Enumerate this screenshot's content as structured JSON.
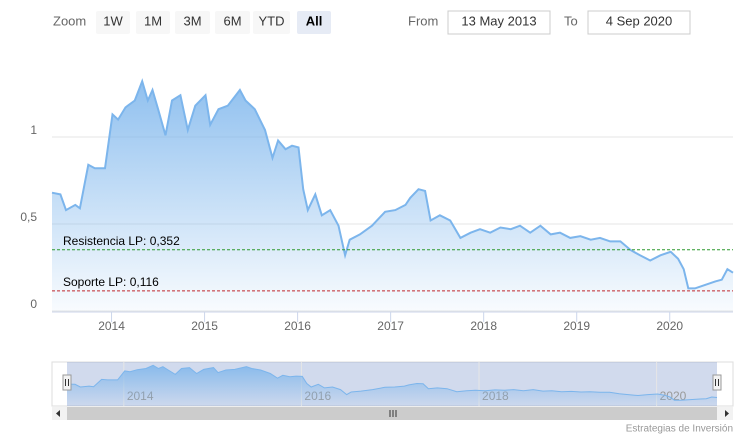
{
  "chart_data": {
    "type": "area",
    "range_selector": {
      "zoom_label": "Zoom",
      "buttons": [
        "1W",
        "1M",
        "3M",
        "6M",
        "YTD",
        "All"
      ],
      "selected": "All",
      "from_label": "From",
      "from_value": "13 May 2013",
      "to_label": "To",
      "to_value": "4 Sep 2020"
    },
    "color": "#7cb5ec",
    "x": [
      2013.36,
      2013.45,
      2013.51,
      2013.61,
      2013.66,
      2013.75,
      2013.82,
      2013.93,
      2014.01,
      2014.07,
      2014.15,
      2014.25,
      2014.33,
      2014.39,
      2014.44,
      2014.5,
      2014.58,
      2014.65,
      2014.74,
      2014.82,
      2014.9,
      2015.01,
      2015.06,
      2015.15,
      2015.25,
      2015.38,
      2015.44,
      2015.54,
      2015.65,
      2015.73,
      2015.79,
      2015.87,
      2015.94,
      2016.01,
      2016.06,
      2016.11,
      2016.19,
      2016.26,
      2016.35,
      2016.44,
      2016.51,
      2016.56,
      2016.67,
      2016.8,
      2016.94,
      2017.05,
      2017.16,
      2017.21,
      2017.3,
      2017.37,
      2017.43,
      2017.53,
      2017.64,
      2017.75,
      2017.86,
      2017.96,
      2018.07,
      2018.18,
      2018.29,
      2018.39,
      2018.5,
      2018.61,
      2018.72,
      2018.82,
      2018.93,
      2019.04,
      2019.15,
      2019.25,
      2019.36,
      2019.47,
      2019.58,
      2019.68,
      2019.79,
      2019.9,
      2020.01,
      2020.09,
      2020.15,
      2020.2,
      2020.27,
      2020.38,
      2020.49,
      2020.56,
      2020.62,
      2020.68
    ],
    "values": [
      0.68,
      0.67,
      0.58,
      0.61,
      0.59,
      0.84,
      0.82,
      0.82,
      1.13,
      1.1,
      1.17,
      1.21,
      1.32,
      1.21,
      1.27,
      1.16,
      1.01,
      1.21,
      1.24,
      1.04,
      1.18,
      1.24,
      1.07,
      1.16,
      1.18,
      1.27,
      1.21,
      1.16,
      1.04,
      0.88,
      0.98,
      0.93,
      0.95,
      0.94,
      0.7,
      0.58,
      0.67,
      0.55,
      0.58,
      0.49,
      0.32,
      0.41,
      0.44,
      0.49,
      0.57,
      0.58,
      0.61,
      0.65,
      0.7,
      0.69,
      0.52,
      0.55,
      0.52,
      0.42,
      0.45,
      0.47,
      0.45,
      0.48,
      0.47,
      0.49,
      0.45,
      0.49,
      0.44,
      0.45,
      0.42,
      0.43,
      0.41,
      0.42,
      0.4,
      0.4,
      0.35,
      0.32,
      0.29,
      0.32,
      0.34,
      0.3,
      0.24,
      0.13,
      0.13,
      0.15,
      0.17,
      0.18,
      0.24,
      0.22
    ],
    "xlim": [
      2013.36,
      2020.68
    ],
    "xticks": [
      2014,
      2015,
      2016,
      2017,
      2018,
      2019,
      2020
    ],
    "ylim": [
      0,
      1.5
    ],
    "yticks": [
      0,
      {
        "value": 0.5,
        "label": "0,5"
      },
      1
    ],
    "grid": true,
    "plot_lines": [
      {
        "label": "Resistencia LP: 0,352",
        "value": 0.352,
        "color": "#2e9a2e"
      },
      {
        "label": "Soporte LP: 0,116",
        "value": 0.116,
        "color": "#c0282d"
      }
    ],
    "navigator_xticks": [
      2014,
      2016,
      2018,
      2020
    ],
    "credits": "Estrategias de Inversión"
  }
}
